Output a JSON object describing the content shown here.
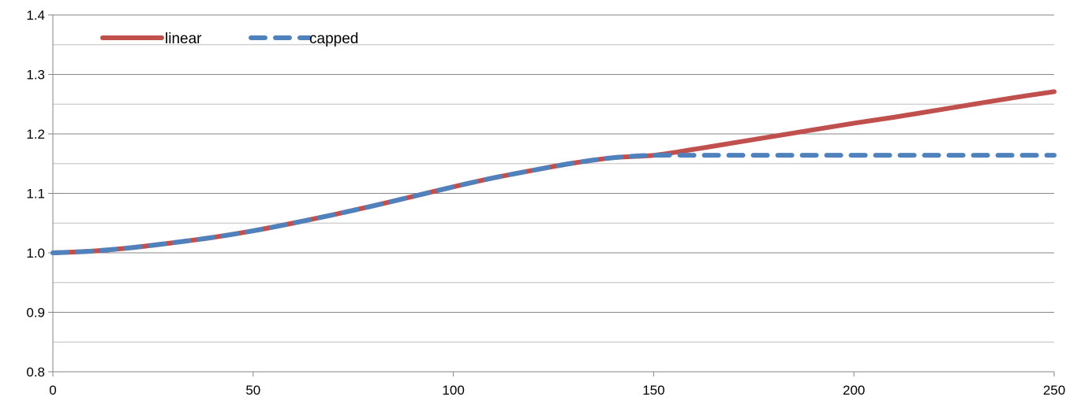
{
  "chart_data": {
    "type": "line",
    "title": "",
    "xlabel": "",
    "ylabel": "",
    "xlim": [
      0,
      250
    ],
    "ylim": [
      0.8,
      1.4
    ],
    "x_ticks": [
      0,
      50,
      100,
      150,
      200,
      250
    ],
    "x_tick_labels": [
      "0",
      "50",
      "100",
      "150",
      "200",
      "250"
    ],
    "y_ticks": [
      0.8,
      0.9,
      1.0,
      1.1,
      1.2,
      1.3,
      1.4
    ],
    "y_tick_labels": [
      "0.8",
      "0.9",
      "1.0",
      "1.1",
      "1.2",
      "1.3",
      "1.4"
    ],
    "y_minor_gridlines": [
      0.85,
      0.95,
      1.05,
      1.15,
      1.25,
      1.35
    ],
    "grid": true,
    "legend_position": "top-left",
    "series": [
      {
        "name": "linear",
        "color": "#c0504d",
        "style": "solid",
        "x": [
          0,
          10,
          20,
          30,
          40,
          50,
          60,
          70,
          80,
          90,
          100,
          110,
          120,
          130,
          140,
          150,
          160,
          170,
          180,
          190,
          200,
          210,
          220,
          230,
          240,
          250
        ],
        "y": [
          1.0,
          1.003,
          1.009,
          1.017,
          1.026,
          1.037,
          1.05,
          1.064,
          1.079,
          1.095,
          1.111,
          1.126,
          1.139,
          1.151,
          1.16,
          1.164,
          1.174,
          1.185,
          1.196,
          1.207,
          1.218,
          1.228,
          1.239,
          1.25,
          1.261,
          1.271
        ]
      },
      {
        "name": "capped",
        "color": "#4f81bd",
        "style": "dashed",
        "x": [
          0,
          10,
          20,
          30,
          40,
          50,
          60,
          70,
          80,
          90,
          100,
          110,
          120,
          130,
          140,
          150,
          160,
          170,
          180,
          190,
          200,
          210,
          220,
          230,
          240,
          250
        ],
        "y": [
          1.0,
          1.003,
          1.009,
          1.017,
          1.026,
          1.037,
          1.05,
          1.064,
          1.079,
          1.095,
          1.111,
          1.126,
          1.139,
          1.151,
          1.16,
          1.164,
          1.164,
          1.164,
          1.164,
          1.164,
          1.164,
          1.164,
          1.164,
          1.164,
          1.164,
          1.164
        ]
      }
    ]
  }
}
